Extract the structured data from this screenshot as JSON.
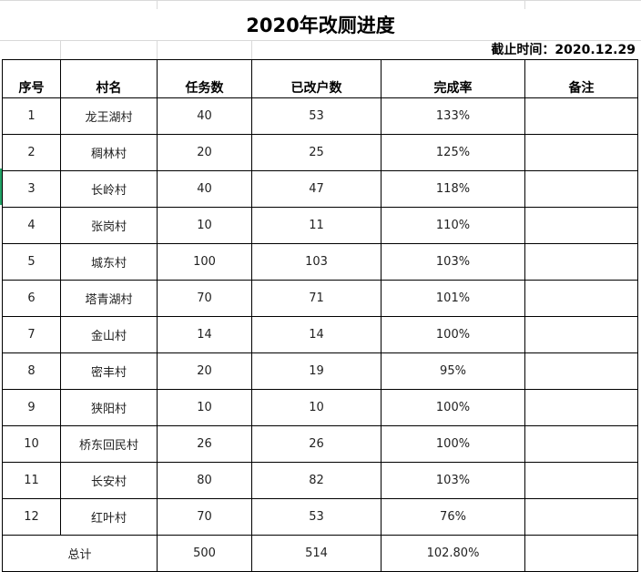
{
  "title": "2020年改厕进度",
  "deadline": "截止时间：2020.12.29",
  "headers": [
    "序号",
    "村名",
    "任务数",
    "已改户数",
    "完成率",
    "备注"
  ],
  "rows": [
    {
      "no": "1",
      "village": "龙王湖村",
      "tasks": "40",
      "done": "53",
      "rate": "133%",
      "note": ""
    },
    {
      "no": "2",
      "village": "稠林村",
      "tasks": "20",
      "done": "25",
      "rate": "125%",
      "note": ""
    },
    {
      "no": "3",
      "village": "长岭村",
      "tasks": "40",
      "done": "47",
      "rate": "118%",
      "note": ""
    },
    {
      "no": "4",
      "village": "张岗村",
      "tasks": "10",
      "done": "11",
      "rate": "110%",
      "note": ""
    },
    {
      "no": "5",
      "village": "城东村",
      "tasks": "100",
      "done": "103",
      "rate": "103%",
      "note": ""
    },
    {
      "no": "6",
      "village": "塔青湖村",
      "tasks": "70",
      "done": "71",
      "rate": "101%",
      "note": ""
    },
    {
      "no": "7",
      "village": "金山村",
      "tasks": "14",
      "done": "14",
      "rate": "100%",
      "note": ""
    },
    {
      "no": "8",
      "village": "密丰村",
      "tasks": "20",
      "done": "19",
      "rate": "95%",
      "note": ""
    },
    {
      "no": "9",
      "village": "狭阳村",
      "tasks": "10",
      "done": "10",
      "rate": "100%",
      "note": ""
    },
    {
      "no": "10",
      "village": "桥东回民村",
      "tasks": "26",
      "done": "26",
      "rate": "100%",
      "note": ""
    },
    {
      "no": "11",
      "village": "长安村",
      "tasks": "80",
      "done": "82",
      "rate": "103%",
      "note": ""
    },
    {
      "no": "12",
      "village": "红叶村",
      "tasks": "70",
      "done": "53",
      "rate": "76%",
      "note": ""
    }
  ],
  "total": {
    "label": "总计",
    "tasks": "500",
    "done": "514",
    "rate": "102.80%",
    "note": ""
  },
  "selection_color": "#21a366"
}
